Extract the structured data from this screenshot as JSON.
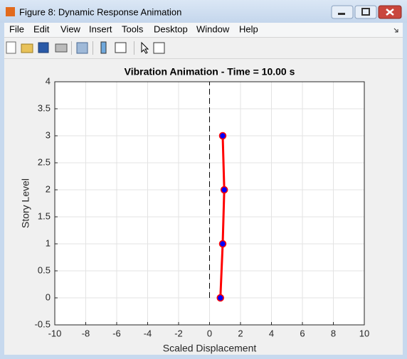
{
  "window": {
    "title": "Figure 8: Dynamic Response Animation",
    "menu": [
      "File",
      "Edit",
      "View",
      "Insert",
      "Tools",
      "Desktop",
      "Window",
      "Help"
    ]
  },
  "chart_data": {
    "type": "line",
    "title": "Vibration Animation - Time = 10.00 s",
    "x_label": "Scaled Displacement",
    "y_label": "Story Level",
    "series": [
      {
        "color": "#ff0000",
        "marker_color": "#0000ff",
        "x": [
          0.7,
          0.85,
          0.95,
          0.85
        ],
        "values": [
          0,
          1,
          2,
          3
        ]
      }
    ],
    "reference_line": {
      "x": 0,
      "y": [
        0,
        4
      ],
      "color": "#000000"
    },
    "xlim": [
      -10,
      10
    ],
    "ylim": [
      -0.5,
      4
    ],
    "xticks": [
      -10,
      -8,
      -6,
      -4,
      -2,
      0,
      2,
      4,
      6,
      8,
      10
    ],
    "yticks": [
      -0.5,
      0,
      0.5,
      1,
      1.5,
      2,
      2.5,
      3,
      3.5,
      4
    ],
    "grid": true
  }
}
